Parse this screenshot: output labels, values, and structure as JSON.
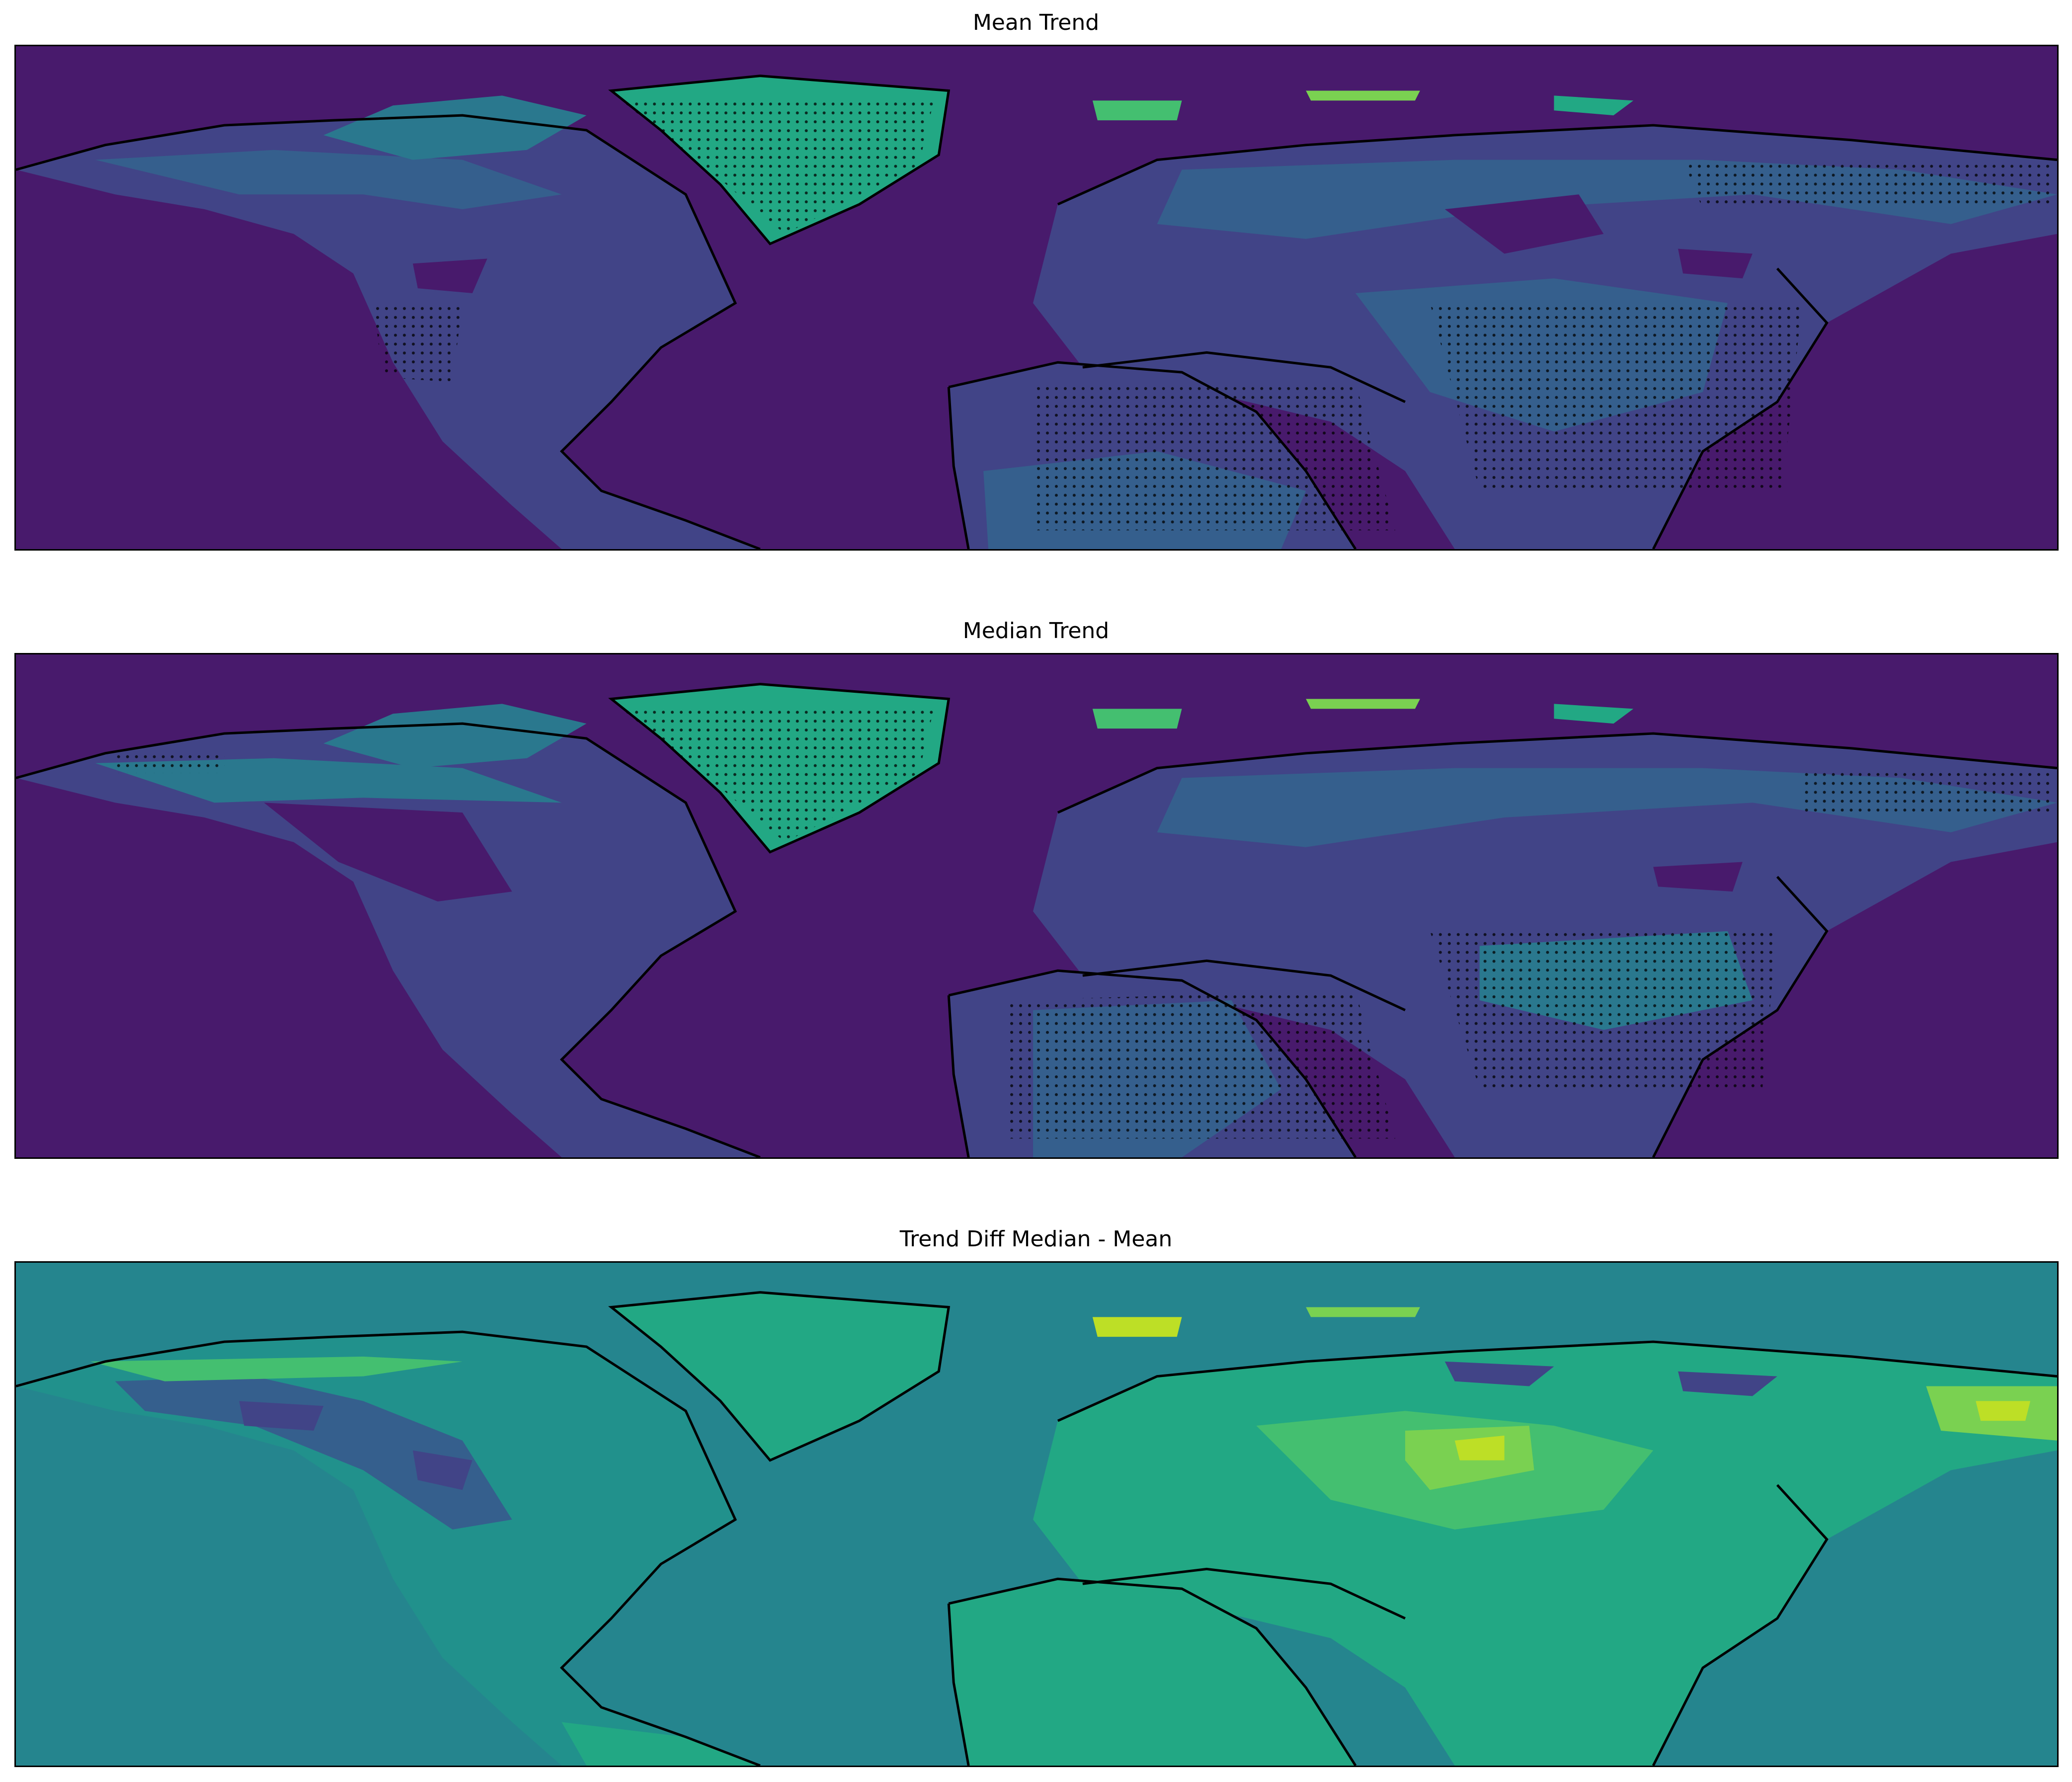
{
  "figure": {
    "panels": [
      {
        "title": "Mean Trend",
        "background": "#481a6c",
        "stippled": true
      },
      {
        "title": "Median Trend",
        "background": "#481a6c",
        "stippled": true
      },
      {
        "title": "Trend Diff Median - Mean",
        "background": "#25858e",
        "stippled": false
      }
    ],
    "colormap": "viridis",
    "colors": {
      "level0": "#481a6c",
      "level1": "#414487",
      "level2": "#355f8d",
      "level3": "#2a788e",
      "level4": "#21918c",
      "level5": "#22a884",
      "level6": "#44bf70",
      "level7": "#7ad151",
      "level8": "#bddf26",
      "level9": "#fde725",
      "coastline": "#000000",
      "stipple": "#000000"
    }
  }
}
